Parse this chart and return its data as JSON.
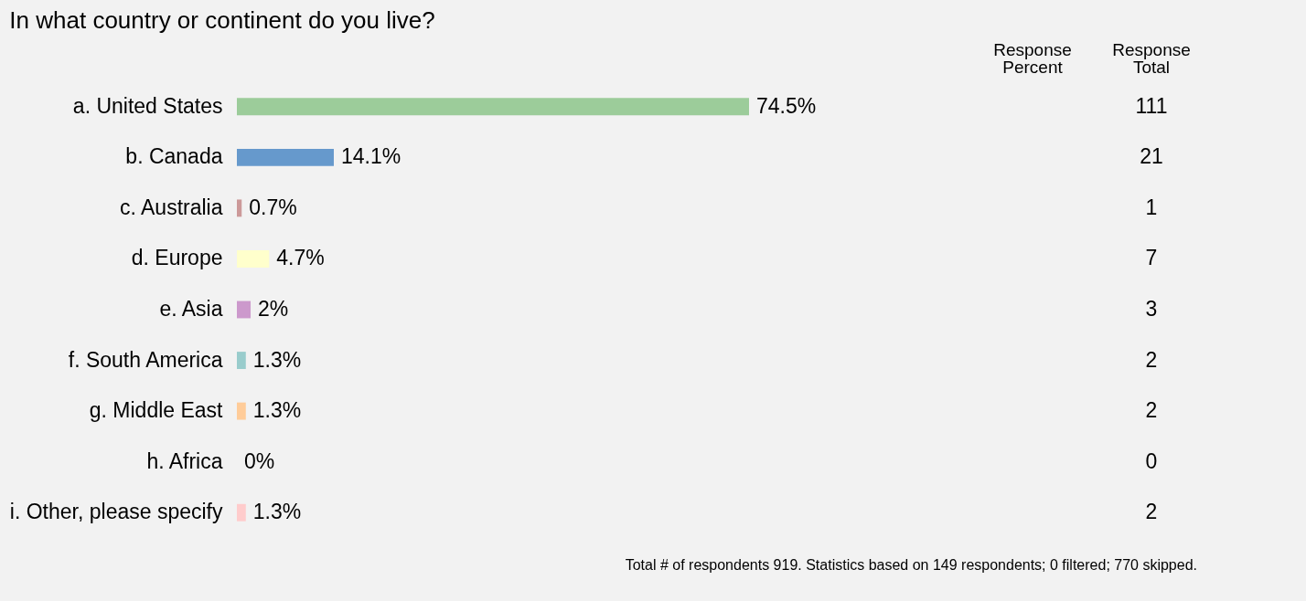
{
  "chart_data": {
    "type": "bar",
    "orientation": "horizontal",
    "title": "In what country or continent do you live?",
    "categories": [
      "a. United States",
      "b. Canada",
      "c. Australia",
      "d. Europe",
      "e. Asia",
      "f. South America",
      "g. Middle East",
      "h. Africa",
      "i. Other, please specify"
    ],
    "values": [
      74.5,
      14.1,
      0.7,
      4.7,
      2,
      1.3,
      1.3,
      0,
      1.3
    ],
    "colors": [
      "#9ccc9a",
      "#6699cc",
      "#cc9999",
      "#ffffcc",
      "#cc99cc",
      "#99cccc",
      "#ffcc99",
      "#cccccc",
      "#ffcccc"
    ],
    "value_labels": [
      "74.5%",
      "14.1%",
      "0.7%",
      "4.7%",
      "2%",
      "1.3%",
      "1.3%",
      "0%",
      "1.3%"
    ],
    "tick_labels": "y",
    "grid": false,
    "annotations": [
      "Response Percent",
      "Response Total",
      "Total # of respondents 919. Statistics based on 149 respondents; 0 filtered; 770 skipped.",
      "111",
      "21",
      "1",
      "7",
      "3",
      "2",
      "2",
      "0",
      "2"
    ]
  }
}
